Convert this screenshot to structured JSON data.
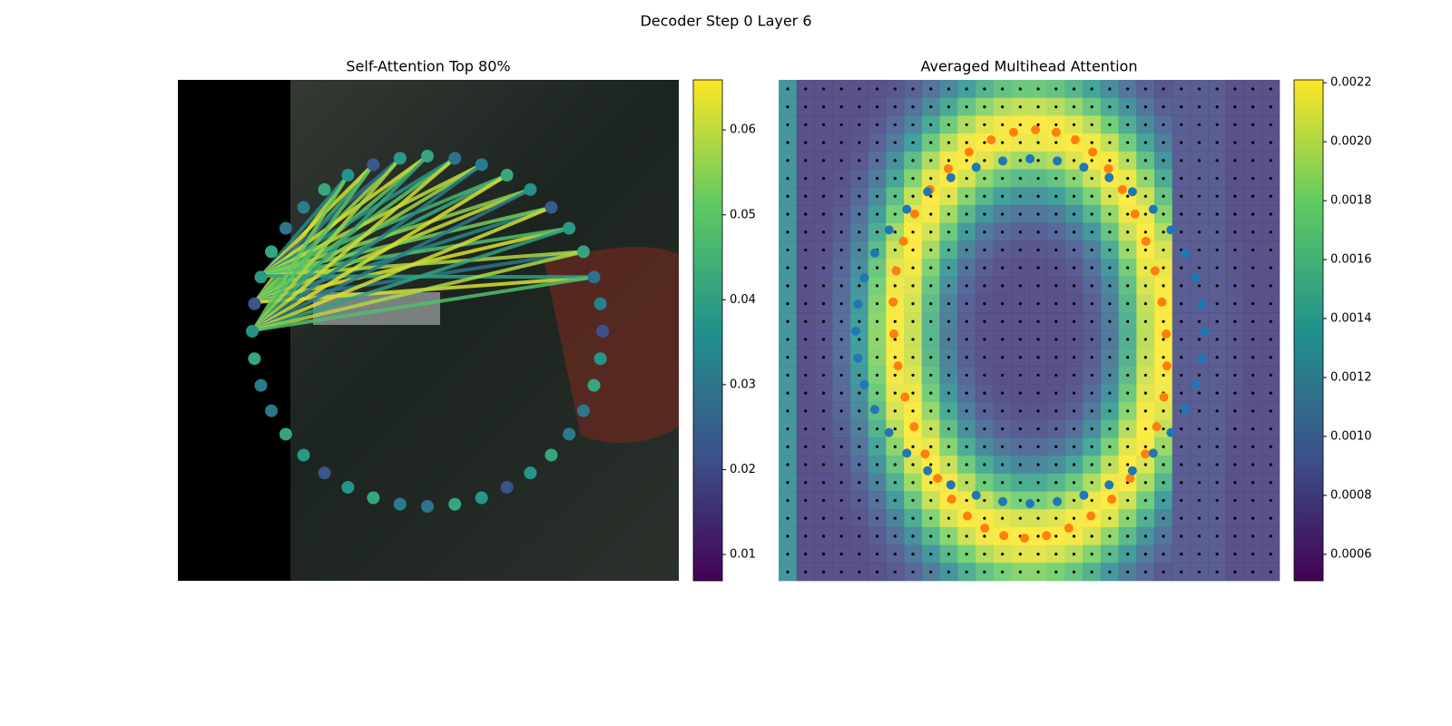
{
  "title": "Decoder Step 0 Layer 6",
  "chart_data": [
    {
      "type": "heatmap",
      "title": "Self-Attention Top 80%",
      "clim": [
        0.0069,
        0.0659
      ],
      "cticks": [
        0.01,
        0.02,
        0.03,
        0.04,
        0.05,
        0.06
      ],
      "colormap": "viridis"
    },
    {
      "type": "heatmap",
      "title": "Averaged Multihead Attention",
      "clim": [
        0.00051,
        0.00221
      ],
      "cticks": [
        0.0006,
        0.0008,
        {
          "value": 0.001,
          "label": "0.0010"
        },
        0.0012,
        0.0014,
        0.0016,
        0.0018,
        {
          "value": 0.002,
          "label": "0.0020"
        },
        0.0022
      ],
      "colormap": "viridis"
    }
  ]
}
